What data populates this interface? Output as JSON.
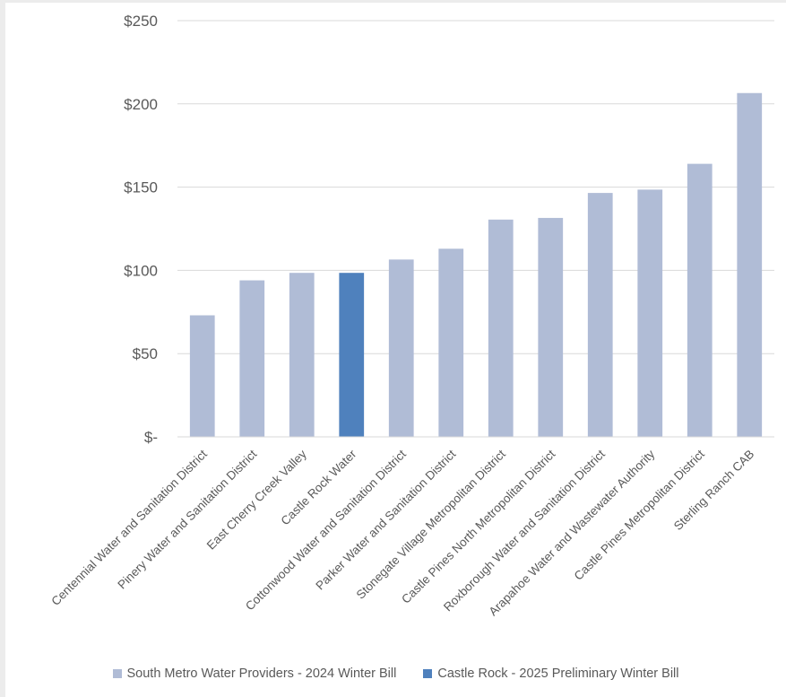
{
  "chart_data": {
    "type": "bar",
    "categories": [
      "Centennial Water and Sanitation District",
      "Pinery Water and Sanitation District",
      "East Cherry Creek Valley",
      "Castle Rock Water",
      "Cottonwood Water and Sanitation District",
      "Parker Water and Sanitation District",
      "Stonegate Village Metropolitan District",
      "Castle Pines North Metropolitan District",
      "Roxborough Water and Sanitation District",
      "Arapahoe Water and Wastewater Authority",
      "Castle Pines Metropolitan District",
      "Sterling Ranch CAB"
    ],
    "values": [
      73,
      94,
      98.5,
      98.5,
      106.5,
      113,
      130.5,
      131.5,
      146.5,
      148.5,
      164,
      206.5
    ],
    "series_index": [
      0,
      0,
      0,
      1,
      0,
      0,
      0,
      0,
      0,
      0,
      0,
      0
    ],
    "series": [
      {
        "name": "South Metro Water Providers - 2024 Winter Bill",
        "color": "#b0bcd6"
      },
      {
        "name": "Castle Rock - 2025 Preliminary Winter Bill",
        "color": "#4f81bd"
      }
    ],
    "yticks": [
      0,
      50,
      100,
      150,
      200,
      250
    ],
    "ytick_labels": [
      "$-",
      "$50",
      "$100",
      "$150",
      "$200",
      "$250"
    ],
    "ylim": [
      0,
      250
    ],
    "grid": true,
    "legend_position": "bottom",
    "title": "",
    "xlabel": "",
    "ylabel": ""
  }
}
